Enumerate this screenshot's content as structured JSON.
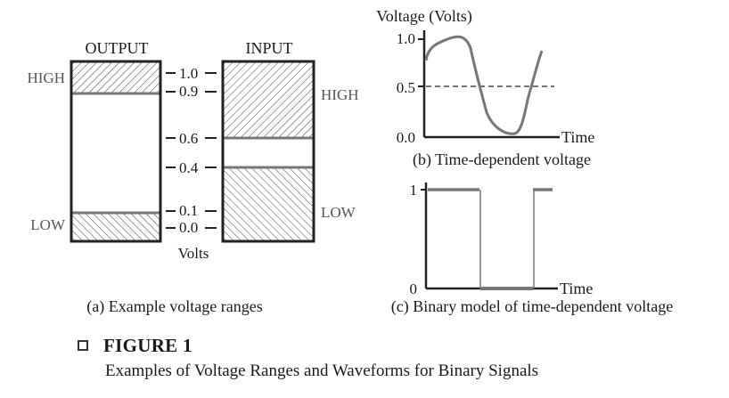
{
  "ranges": {
    "output_header": "OUTPUT",
    "input_header": "INPUT",
    "high_left": "HIGH",
    "low_left": "LOW",
    "high_right": "HIGH",
    "low_right": "LOW",
    "volts_label": "Volts",
    "ticks": [
      "1.0",
      "0.9",
      "0.6",
      "0.4",
      "0.1",
      "0.0"
    ],
    "caption": "(a) Example voltage ranges"
  },
  "time_dependent": {
    "ylabel": "Voltage (Volts)",
    "xlabel": "Time",
    "yticks": [
      "1.0",
      "0.5",
      "0.0"
    ],
    "caption": "(b) Time-dependent voltage"
  },
  "binary_model": {
    "xlabel": "Time",
    "yticks": [
      "1",
      "0"
    ],
    "caption": "(c) Binary model of time-dependent voltage"
  },
  "figure": {
    "title": "FIGURE 1",
    "subtitle": "Examples of Voltage Ranges and Waveforms for Binary Signals"
  }
}
